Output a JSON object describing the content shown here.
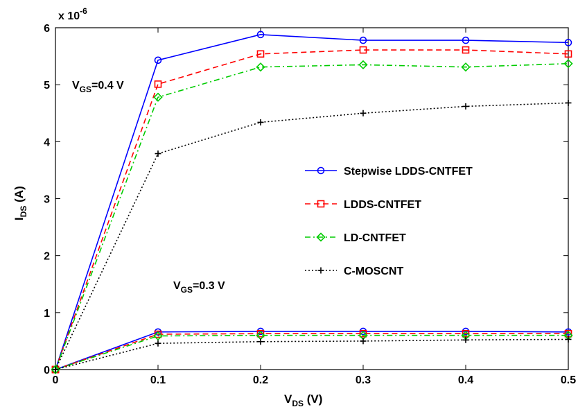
{
  "chart_data": {
    "type": "line",
    "title": "",
    "xlabel_main": "V",
    "xlabel_sub": "DS",
    "xlabel_unit": " (V)",
    "ylabel_main": "I",
    "ylabel_sub": "DS",
    "ylabel_unit": " (A)",
    "y_multiplier": "x 10",
    "y_multiplier_exp": "-6",
    "xlim": [
      0,
      0.5
    ],
    "ylim": [
      0,
      6
    ],
    "x_ticks": [
      0,
      0.1,
      0.2,
      0.3,
      0.4,
      0.5
    ],
    "x_tick_labels": [
      "0",
      "0.1",
      "0.2",
      "0.3",
      "0.4",
      "0.5"
    ],
    "y_ticks": [
      0,
      1,
      2,
      3,
      4,
      5,
      6
    ],
    "y_tick_labels": [
      "0",
      "1",
      "2",
      "3",
      "4",
      "5",
      "6"
    ],
    "grid": false,
    "legend_position": "center-right",
    "x": [
      0,
      0.1,
      0.2,
      0.3,
      0.4,
      0.5
    ],
    "series": [
      {
        "name": "Stepwise LDDS-CNTFET",
        "color": "#0000ff",
        "linestyle": "solid",
        "marker": "circle",
        "vgs04": [
          0,
          5.43,
          5.88,
          5.78,
          5.78,
          5.74
        ],
        "vgs03": [
          0,
          0.66,
          0.67,
          0.67,
          0.67,
          0.66
        ]
      },
      {
        "name": "LDDS-CNTFET",
        "color": "#ff0000",
        "linestyle": "dashed",
        "marker": "square",
        "vgs04": [
          0,
          5.01,
          5.54,
          5.61,
          5.61,
          5.54
        ],
        "vgs03": [
          0,
          0.62,
          0.63,
          0.63,
          0.63,
          0.63
        ]
      },
      {
        "name": "LD-CNTFET",
        "color": "#00cc00",
        "linestyle": "dashdot",
        "marker": "diamond",
        "vgs04": [
          0,
          4.78,
          5.31,
          5.35,
          5.31,
          5.37
        ],
        "vgs03": [
          0,
          0.59,
          0.6,
          0.6,
          0.6,
          0.6
        ]
      },
      {
        "name": "C-MOSCNT",
        "color": "#000000",
        "linestyle": "dotted",
        "marker": "plus",
        "vgs04": [
          0,
          3.79,
          4.34,
          4.5,
          4.62,
          4.68
        ],
        "vgs03": [
          0,
          0.46,
          0.49,
          0.5,
          0.52,
          0.53
        ]
      }
    ],
    "annotations": [
      {
        "main": "V",
        "sub": "GS",
        "rest": "=0.4 V"
      },
      {
        "main": "V",
        "sub": "GS",
        "rest": "=0.3 V"
      }
    ]
  }
}
